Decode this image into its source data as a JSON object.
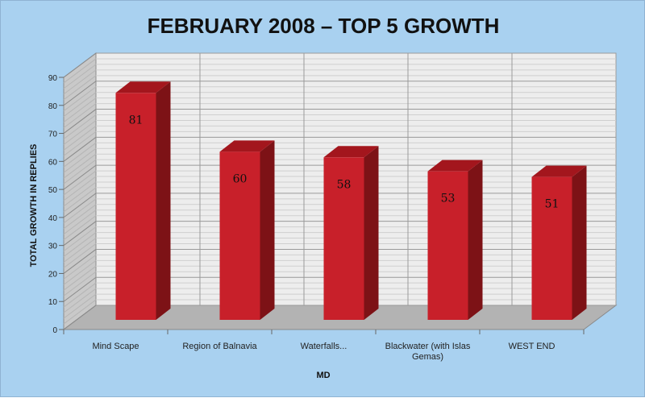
{
  "chart_data": {
    "type": "bar",
    "title": "FEBRUARY 2008 – TOP 5 GROWTH",
    "xlabel": "MD",
    "ylabel": "TOTAL GROWTH IN REPLIES",
    "categories": [
      "Mind Scape",
      "Region of Balnavia",
      "Waterfalls...",
      "Blackwater (with Islas Gemas)",
      "WEST END"
    ],
    "values": [
      81,
      60,
      58,
      53,
      51
    ],
    "ylim": [
      0,
      90
    ],
    "yticks": [
      0,
      10,
      20,
      30,
      40,
      50,
      60,
      70,
      80,
      90
    ],
    "grid": true,
    "legend": "none",
    "bar_color": "#c8202a",
    "bar_side_color": "#7d1216",
    "bar_top_color": "#a3161d"
  }
}
